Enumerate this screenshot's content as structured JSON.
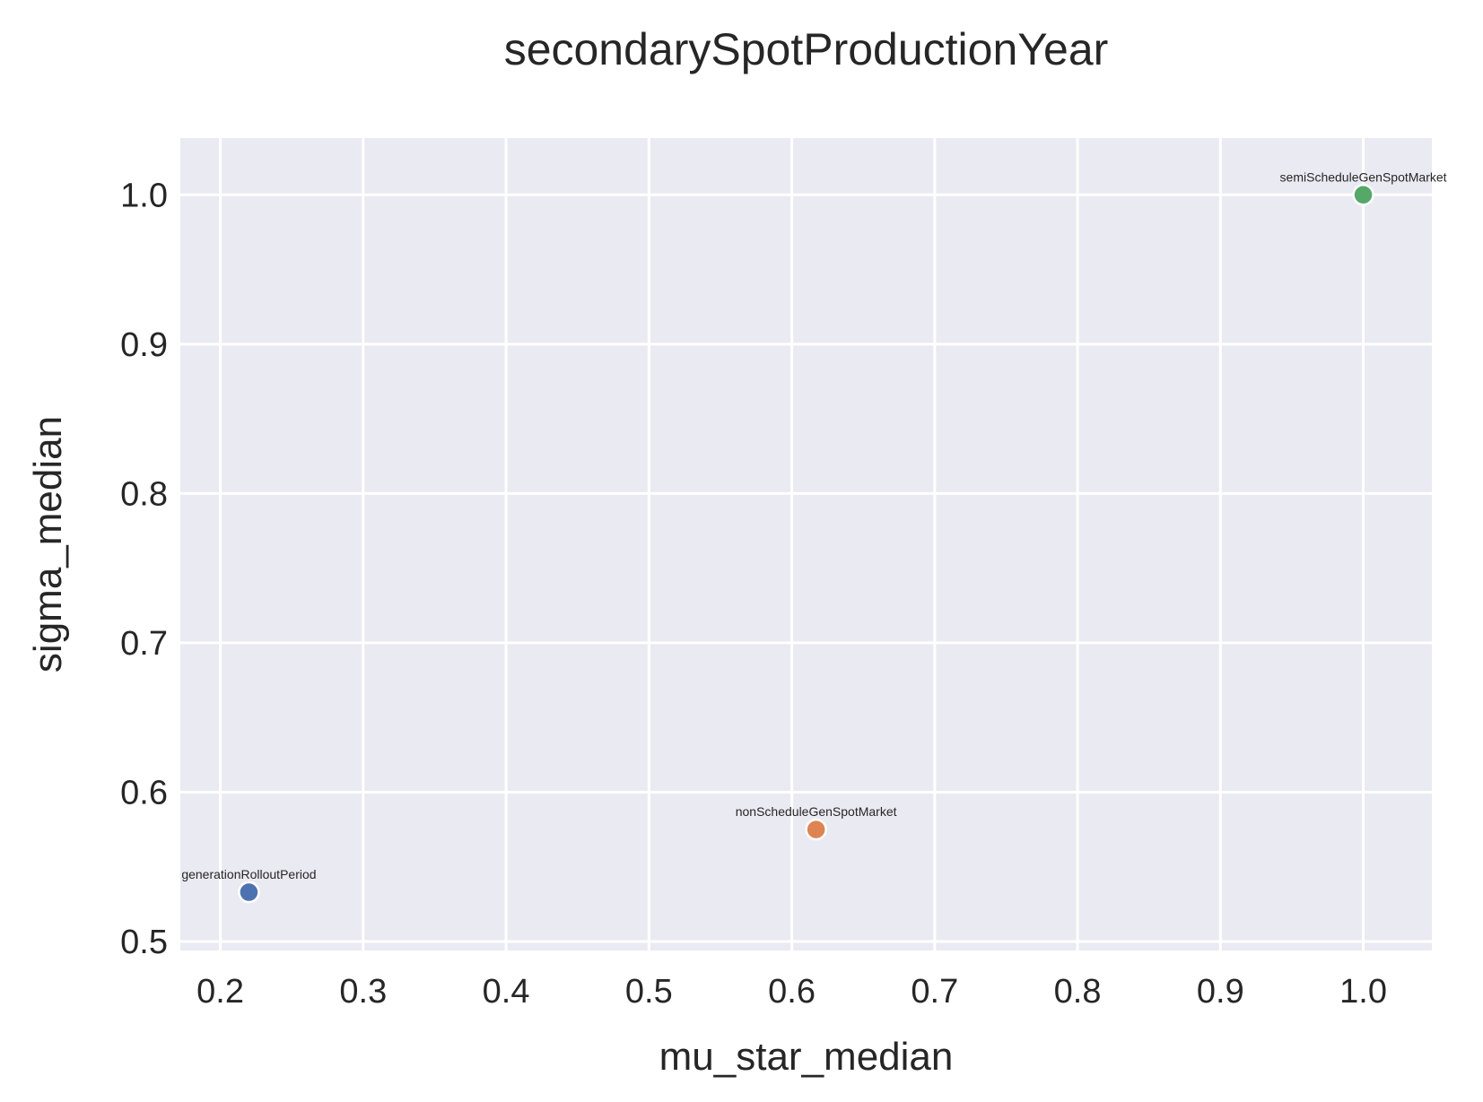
{
  "chart_data": {
    "type": "scatter",
    "title": "secondarySpotProductionYear",
    "xlabel": "mu_star_median",
    "ylabel": "sigma_median",
    "xlim": [
      0.172,
      1.048
    ],
    "ylim": [
      0.494,
      1.038
    ],
    "xticks": [
      "0.2",
      "0.3",
      "0.4",
      "0.5",
      "0.6",
      "0.7",
      "0.8",
      "0.9",
      "1.0"
    ],
    "yticks": [
      "0.5",
      "0.6",
      "0.7",
      "0.8",
      "0.9",
      "1.0"
    ],
    "grid": true,
    "background": "#eaeaf2",
    "points": [
      {
        "label": "generationRolloutPeriod",
        "x": 0.22,
        "y": 0.533,
        "color": "#4c72b0"
      },
      {
        "label": "nonScheduleGenSpotMarket",
        "x": 0.617,
        "y": 0.575,
        "color": "#dd8452"
      },
      {
        "label": "semiScheduleGenSpotMarket",
        "x": 1.0,
        "y": 1.0,
        "color": "#55a868"
      }
    ]
  }
}
